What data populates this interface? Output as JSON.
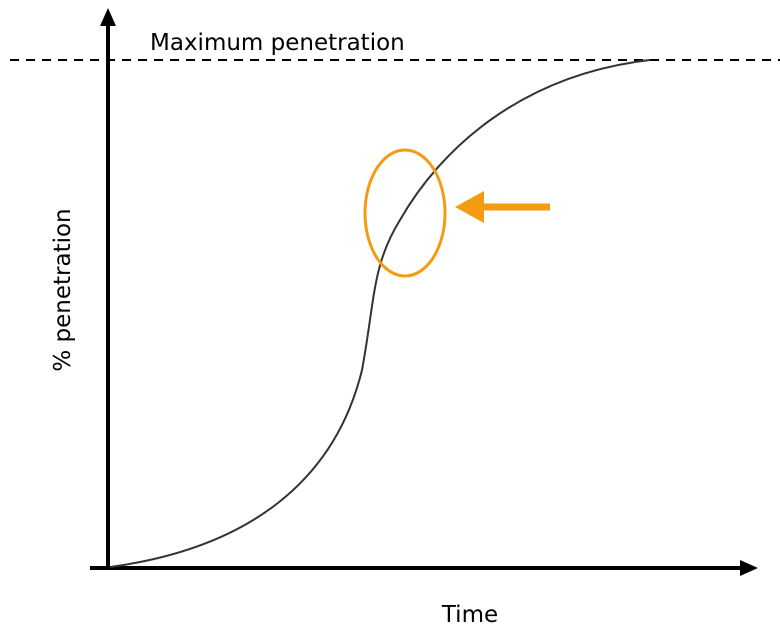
{
  "top_label": "Maximum penetration",
  "y_axis_label": "% penetration",
  "x_axis_label": "Time"
}
